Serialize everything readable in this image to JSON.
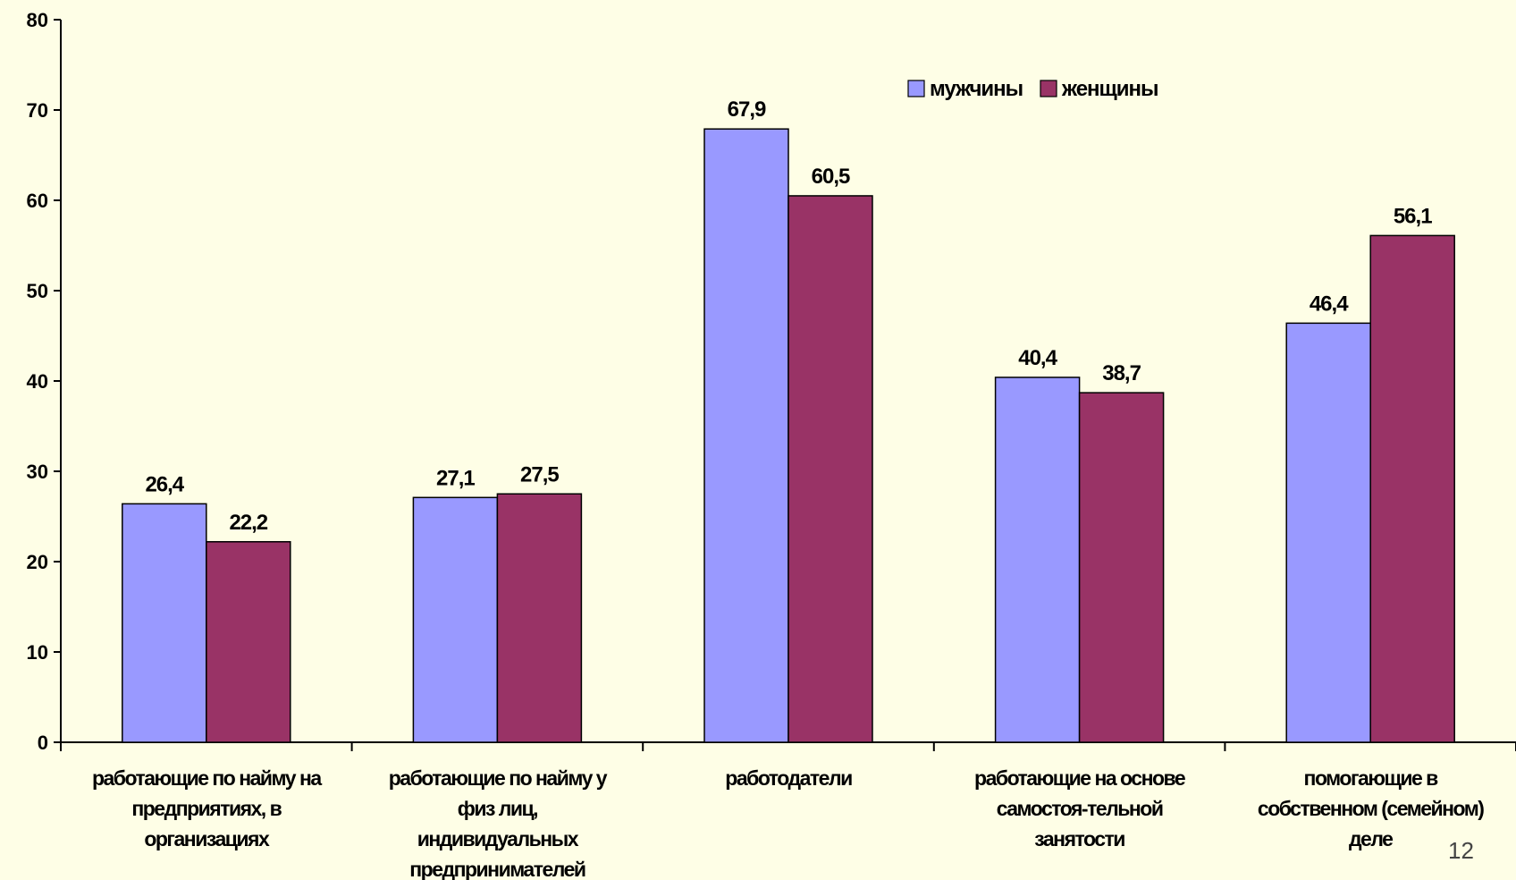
{
  "chart_data": {
    "type": "bar",
    "categories": [
      [
        "работающие по найму на",
        "предприятиях, в",
        "организациях"
      ],
      [
        "работающие по найму у",
        "физ лиц,",
        "индивидуальных",
        "предпринимателей"
      ],
      [
        "работодатели"
      ],
      [
        "работающие на основе",
        "самостоя-тельной",
        "занятости"
      ],
      [
        "помогающие в",
        "собственном (семейном)",
        "деле"
      ]
    ],
    "series": [
      {
        "name": "мужчины",
        "color": "#9999ff",
        "values": [
          26.4,
          27.1,
          67.9,
          40.4,
          46.4
        ],
        "labels": [
          "26,4",
          "27,1",
          "67,9",
          "40,4",
          "46,4"
        ]
      },
      {
        "name": "женщины",
        "color": "#993366",
        "values": [
          22.2,
          27.5,
          60.5,
          38.7,
          56.1
        ],
        "labels": [
          "22,2",
          "27,5",
          "60,5",
          "38,7",
          "56,1"
        ]
      }
    ],
    "ylim": [
      0,
      80
    ],
    "yticks": [
      0,
      10,
      20,
      30,
      40,
      50,
      60,
      70,
      80
    ],
    "legend_position": "top-right",
    "grid": false
  },
  "page_number": "12"
}
